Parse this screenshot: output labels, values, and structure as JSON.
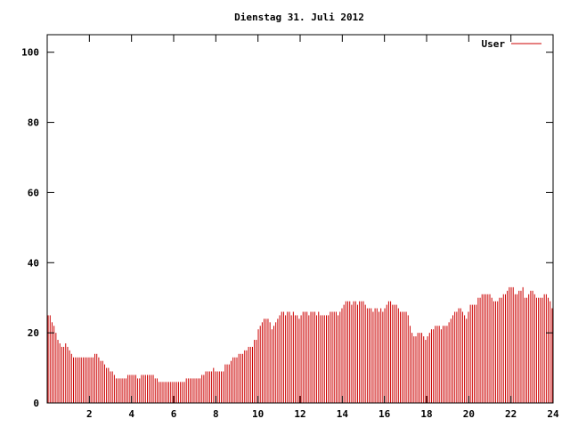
{
  "chart_data": {
    "type": "bar",
    "title": "Dienstag 31. Juli 2012",
    "xlabel": "",
    "ylabel": "",
    "xlim": [
      0,
      24
    ],
    "ylim": [
      0,
      105
    ],
    "x_ticks": [
      2,
      4,
      6,
      8,
      10,
      12,
      14,
      16,
      18,
      20,
      22,
      24
    ],
    "x_tick_labels": [
      "2",
      "4",
      "6",
      "8",
      "10",
      "12",
      "14",
      "16",
      "18",
      "20",
      "22",
      "24"
    ],
    "y_ticks": [
      0,
      20,
      40,
      60,
      80,
      100
    ],
    "y_tick_labels": [
      "0",
      "20",
      "40",
      "60",
      "80",
      "100"
    ],
    "grid": false,
    "legend": {
      "position": "top-right"
    },
    "colors": {
      "series": "#cc0000",
      "axis": "#000000",
      "background": "#ffffff"
    },
    "x_step_hours": 0.0833,
    "series": [
      {
        "name": "User",
        "color": "#cc0000",
        "values": [
          25,
          25,
          23,
          22,
          20,
          18,
          17,
          16,
          16,
          17,
          16,
          15,
          14,
          13,
          13,
          13,
          13,
          13,
          13,
          13,
          13,
          13,
          13,
          13,
          14,
          14,
          13,
          12,
          12,
          11,
          10,
          10,
          9,
          9,
          8,
          7,
          7,
          7,
          7,
          7,
          7,
          8,
          8,
          8,
          8,
          8,
          7,
          7,
          8,
          8,
          8,
          8,
          8,
          8,
          8,
          7,
          7,
          6,
          6,
          6,
          6,
          6,
          6,
          6,
          6,
          6,
          6,
          6,
          6,
          6,
          6,
          7,
          7,
          7,
          7,
          7,
          7,
          7,
          7,
          8,
          8,
          9,
          9,
          9,
          9,
          10,
          9,
          9,
          9,
          9,
          9,
          11,
          11,
          11,
          12,
          13,
          13,
          13,
          14,
          14,
          14,
          15,
          15,
          16,
          16,
          16,
          18,
          18,
          21,
          22,
          23,
          24,
          24,
          24,
          23,
          21,
          22,
          23,
          24,
          25,
          26,
          26,
          25,
          26,
          26,
          25,
          26,
          25,
          25,
          24,
          25,
          26,
          26,
          26,
          25,
          26,
          26,
          26,
          25,
          26,
          25,
          25,
          25,
          25,
          25,
          26,
          26,
          26,
          26,
          25,
          26,
          27,
          28,
          29,
          29,
          29,
          28,
          29,
          29,
          28,
          29,
          29,
          29,
          28,
          27,
          27,
          27,
          26,
          27,
          27,
          26,
          27,
          26,
          27,
          28,
          29,
          29,
          28,
          28,
          28,
          27,
          26,
          26,
          26,
          26,
          25,
          22,
          20,
          19,
          19,
          20,
          20,
          20,
          19,
          18,
          19,
          20,
          21,
          21,
          22,
          22,
          22,
          21,
          22,
          22,
          22,
          23,
          24,
          25,
          26,
          26,
          27,
          27,
          26,
          25,
          24,
          26,
          28,
          28,
          28,
          28,
          30,
          30,
          31,
          31,
          31,
          31,
          31,
          30,
          29,
          29,
          29,
          30,
          30,
          31,
          31,
          32,
          33,
          33,
          33,
          31,
          31,
          32,
          32,
          33,
          30,
          30,
          31,
          32,
          32,
          31,
          30,
          30,
          30,
          30,
          31,
          31,
          30,
          29,
          27
        ]
      }
    ]
  }
}
